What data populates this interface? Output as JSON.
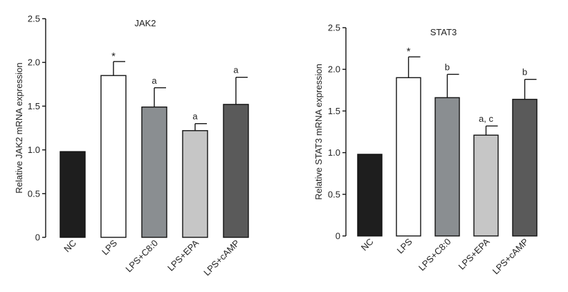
{
  "chart_data": [
    {
      "type": "bar",
      "title": "JAK2",
      "ylabel": "Relative JAK2 mRNA expression",
      "xlabel": "",
      "ylim": [
        0,
        2.5
      ],
      "yticks": [
        "0",
        "0.5",
        "1.0",
        "1.5",
        "2.0",
        "2.5"
      ],
      "categories": [
        "NC",
        "LPS",
        "LPS+C8:0",
        "LPS+EPA",
        "LPS+cAMP"
      ],
      "values": [
        0.98,
        1.85,
        1.49,
        1.22,
        1.52
      ],
      "errors": [
        0,
        0.16,
        0.22,
        0.08,
        0.31
      ],
      "annotations": [
        "",
        "*",
        "a",
        "a",
        "a"
      ],
      "colors": [
        "#1e1e1e",
        "#ffffff",
        "#8a8e91",
        "#c6c6c6",
        "#5a5a5a"
      ]
    },
    {
      "type": "bar",
      "title": "STAT3",
      "ylabel": "Relative STAT3 mRNA expression",
      "xlabel": "",
      "ylim": [
        0,
        2.5
      ],
      "yticks": [
        "0",
        "0.5",
        "1.0",
        "1.5",
        "2.0",
        "2.5"
      ],
      "categories": [
        "NC",
        "LPS",
        "LPS+C8:0",
        "LPS+EPA",
        "LPS+cAMP"
      ],
      "values": [
        0.98,
        1.9,
        1.66,
        1.21,
        1.64
      ],
      "errors": [
        0,
        0.25,
        0.28,
        0.11,
        0.24
      ],
      "annotations": [
        "",
        "*",
        "b",
        "a, c",
        "b"
      ],
      "colors": [
        "#1e1e1e",
        "#ffffff",
        "#8a8e91",
        "#c6c6c6",
        "#5a5a5a"
      ]
    }
  ]
}
